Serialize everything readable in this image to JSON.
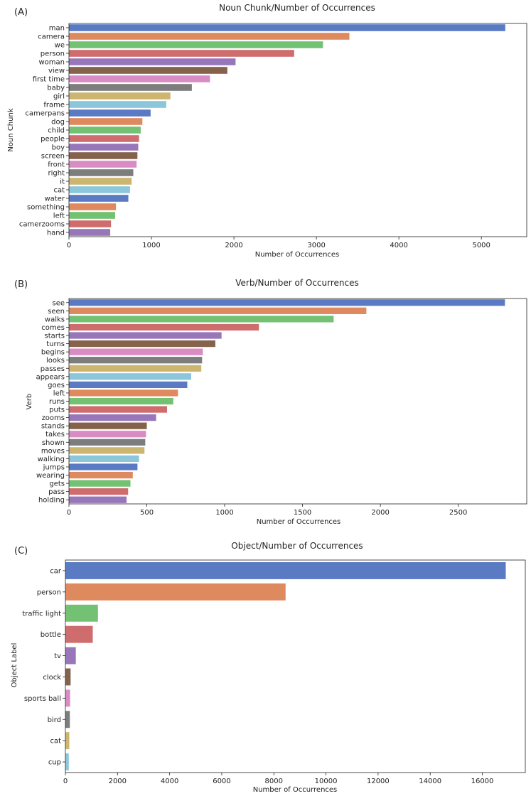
{
  "chart_data": [
    {
      "type": "bar",
      "orientation": "horizontal",
      "panel_label": "(A)",
      "title": "Noun Chunk/Number of Occurrences",
      "xlabel": "Number of Occurrences",
      "ylabel": "Noun Chunk",
      "xlim": [
        0,
        5550
      ],
      "xticks": [
        0,
        1000,
        2000,
        3000,
        4000,
        5000
      ],
      "grid": false,
      "categories": [
        "man",
        "camera",
        "we",
        "person",
        "woman",
        "view",
        "first time",
        "baby",
        "girl",
        "frame",
        "camerpans",
        "dog",
        "child",
        "people",
        "boy",
        "screen",
        "front",
        "right",
        "it",
        "cat",
        "water",
        "something",
        "left",
        "camerzooms",
        "hand"
      ],
      "values": [
        5290,
        3400,
        3080,
        2730,
        2020,
        1920,
        1710,
        1490,
        1230,
        1180,
        990,
        890,
        870,
        850,
        840,
        830,
        820,
        780,
        760,
        740,
        720,
        570,
        560,
        510,
        500
      ]
    },
    {
      "type": "bar",
      "orientation": "horizontal",
      "panel_label": "(B)",
      "title": "Verb/Number of Occurrences",
      "xlabel": "Number of Occurrences",
      "ylabel": "Verb",
      "xlim": [
        0,
        2940
      ],
      "xticks": [
        0,
        500,
        1000,
        1500,
        2000,
        2500
      ],
      "grid": false,
      "categories": [
        "see",
        "seen",
        "walks",
        "comes",
        "starts",
        "turns",
        "begins",
        "looks",
        "passes",
        "appears",
        "goes",
        "left",
        "runs",
        "puts",
        "zooms",
        "stands",
        "takes",
        "shown",
        "moves",
        "walking",
        "jumps",
        "wearing",
        "gets",
        "pass",
        "holding"
      ],
      "values": [
        2800,
        1910,
        1700,
        1220,
        980,
        940,
        860,
        855,
        850,
        785,
        760,
        700,
        670,
        630,
        560,
        500,
        495,
        490,
        485,
        450,
        440,
        410,
        395,
        380,
        370
      ]
    },
    {
      "type": "bar",
      "orientation": "horizontal",
      "panel_label": "(C)",
      "title": "Object/Number of Occurrences",
      "xlabel": "Number of Occurrences",
      "ylabel": "Object Label",
      "xlim": [
        0,
        17650
      ],
      "xticks": [
        0,
        2000,
        4000,
        6000,
        8000,
        10000,
        12000,
        14000,
        16000
      ],
      "grid": false,
      "categories": [
        "car",
        "person",
        "traffic light",
        "bottle",
        "tv",
        "clock",
        "sports ball",
        "bird",
        "cat",
        "cup"
      ],
      "values": [
        16900,
        8450,
        1250,
        1050,
        400,
        200,
        180,
        170,
        150,
        130
      ]
    }
  ],
  "palette": [
    "#5a7bc4",
    "#df8a5e",
    "#73c273",
    "#cf6c6e",
    "#9776b9",
    "#85624c",
    "#d98cc4",
    "#7d7d7d",
    "#cbb56f",
    "#8cc6da"
  ]
}
